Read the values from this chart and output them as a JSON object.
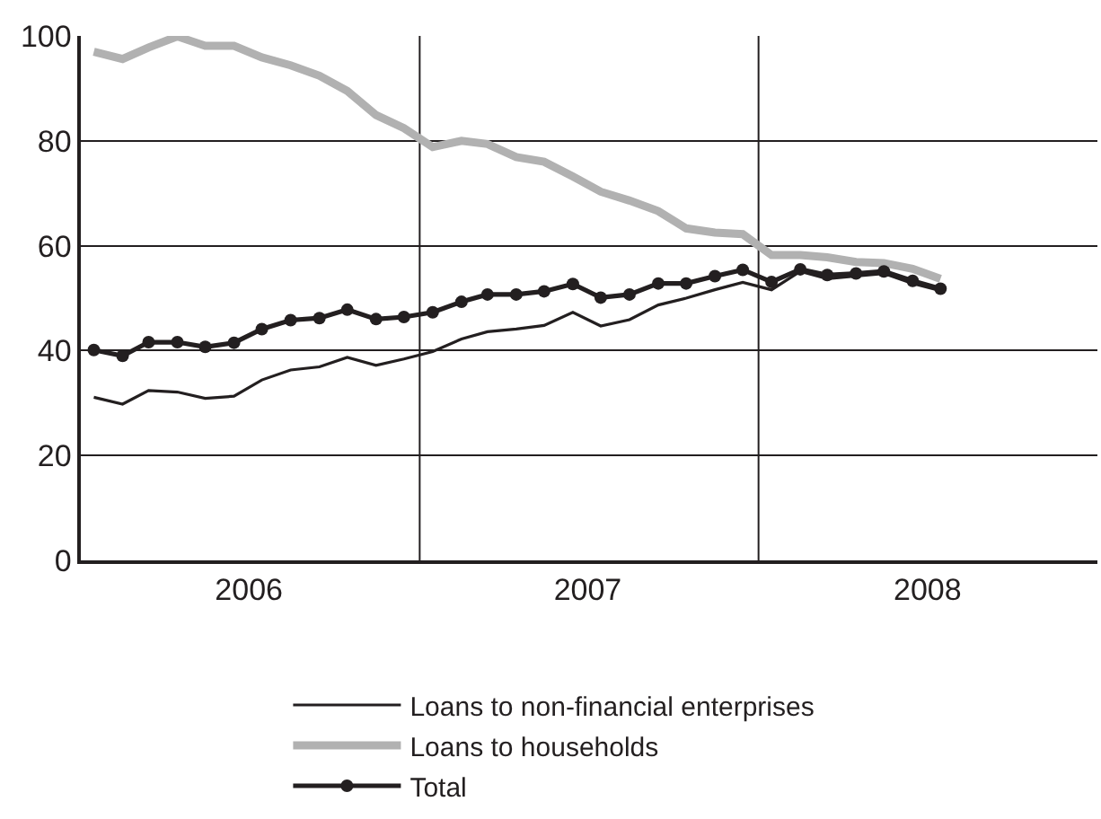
{
  "chart_data": {
    "type": "line",
    "x": [
      "2006-01-15",
      "2006-02-15",
      "2006-03-15",
      "2006-04-15",
      "2006-05-15",
      "2006-06-15",
      "2006-07-15",
      "2006-08-15",
      "2006-09-15",
      "2006-10-15",
      "2006-11-15",
      "2006-12-15",
      "2007-01-15",
      "2007-02-15",
      "2007-03-15",
      "2007-04-15",
      "2007-05-15",
      "2007-06-15",
      "2007-07-15",
      "2007-08-15",
      "2007-09-15",
      "2007-10-15",
      "2007-11-15",
      "2007-12-15",
      "2008-01-15",
      "2008-02-15",
      "2008-03-15",
      "2008-04-15",
      "2008-05-15",
      "2008-06-15",
      "2008-07-15"
    ],
    "series": [
      {
        "name": "Loans to non-financial enterprises",
        "color": "#231f20",
        "values": [
          31.1,
          29.8,
          32.4,
          32.1,
          30.9,
          31.3,
          34.4,
          36.3,
          36.9,
          38.7,
          37.2,
          38.4,
          39.8,
          42.2,
          43.6,
          44.1,
          44.8,
          47.3,
          44.7,
          45.9,
          48.7,
          50.0,
          51.6,
          53.0,
          51.6,
          55.1,
          53.7,
          54.2,
          54.7,
          52.8,
          51.4
        ]
      },
      {
        "name": "Loans to households",
        "color": "#b1b1b1",
        "values": [
          97.0,
          95.6,
          97.8,
          99.9,
          98.1,
          98.1,
          95.9,
          94.4,
          92.4,
          89.5,
          84.9,
          82.4,
          78.8,
          80.0,
          79.4,
          76.9,
          76.0,
          73.2,
          70.3,
          68.6,
          66.6,
          63.3,
          62.5,
          62.2,
          58.2,
          58.2,
          57.8,
          56.9,
          56.7,
          55.6,
          53.7
        ]
      },
      {
        "name": "Total",
        "color": "#231f20",
        "marker": "circle",
        "values": [
          40.1,
          39.0,
          41.6,
          41.6,
          40.7,
          41.5,
          44.1,
          45.8,
          46.2,
          47.8,
          46.0,
          46.4,
          47.3,
          49.3,
          50.7,
          50.7,
          51.3,
          52.7,
          50.1,
          50.7,
          52.8,
          52.8,
          54.2,
          55.4,
          53.1,
          55.5,
          54.4,
          54.7,
          55.1,
          53.3,
          51.8
        ]
      }
    ],
    "xlim": [
      "2006-01-01",
      "2008-12-31"
    ],
    "xticks": [
      {
        "value": "2006-07-01",
        "label": "2006"
      },
      {
        "value": "2007-07-01",
        "label": "2007"
      },
      {
        "value": "2008-07-01",
        "label": "2008"
      }
    ],
    "ylim": [
      0,
      100
    ],
    "yticks": [
      0,
      20,
      40,
      60,
      80,
      100
    ],
    "grid": "y",
    "ref_lines": [
      {
        "axis": "x",
        "value": "2007-01-01",
        "label": null,
        "color": "#231f20"
      },
      {
        "axis": "x",
        "value": "2008-01-01",
        "label": null,
        "color": "#231f20"
      }
    ],
    "legend": "bottom"
  }
}
